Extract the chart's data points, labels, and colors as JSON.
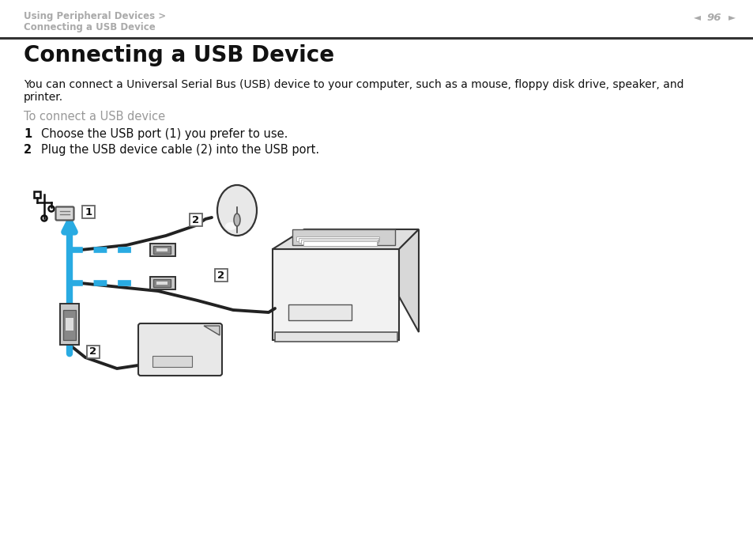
{
  "bg_color": "#ffffff",
  "header_bc1": "Using Peripheral Devices >",
  "header_bc2": "Connecting a USB Device",
  "header_bc_color": "#aaaaaa",
  "header_bc_fontsize": 8.5,
  "page_num": "96",
  "page_num_color": "#aaaaaa",
  "title": "Connecting a USB Device",
  "title_fontsize": 20,
  "title_color": "#111111",
  "body1": "You can connect a Universal Serial Bus (USB) device to your computer, such as a mouse, floppy disk drive, speaker, and",
  "body2": "printer.",
  "body_fontsize": 10,
  "body_color": "#111111",
  "subhead": "To connect a USB device",
  "subhead_color": "#999999",
  "subhead_fontsize": 10.5,
  "step1_text": "Choose the USB port (1) you prefer to use.",
  "step2_text": "Plug the USB device cable (2) into the USB port.",
  "step_fontsize": 10.5,
  "step_color": "#111111",
  "arrow_color": "#29abe2",
  "sep_color": "#333333",
  "diag_line": "#222222",
  "diag_fill_light": "#f0f0f0",
  "diag_fill_mid": "#d8d8d8",
  "diag_fill_dark": "#aaaaaa",
  "label_edge": "#666666"
}
